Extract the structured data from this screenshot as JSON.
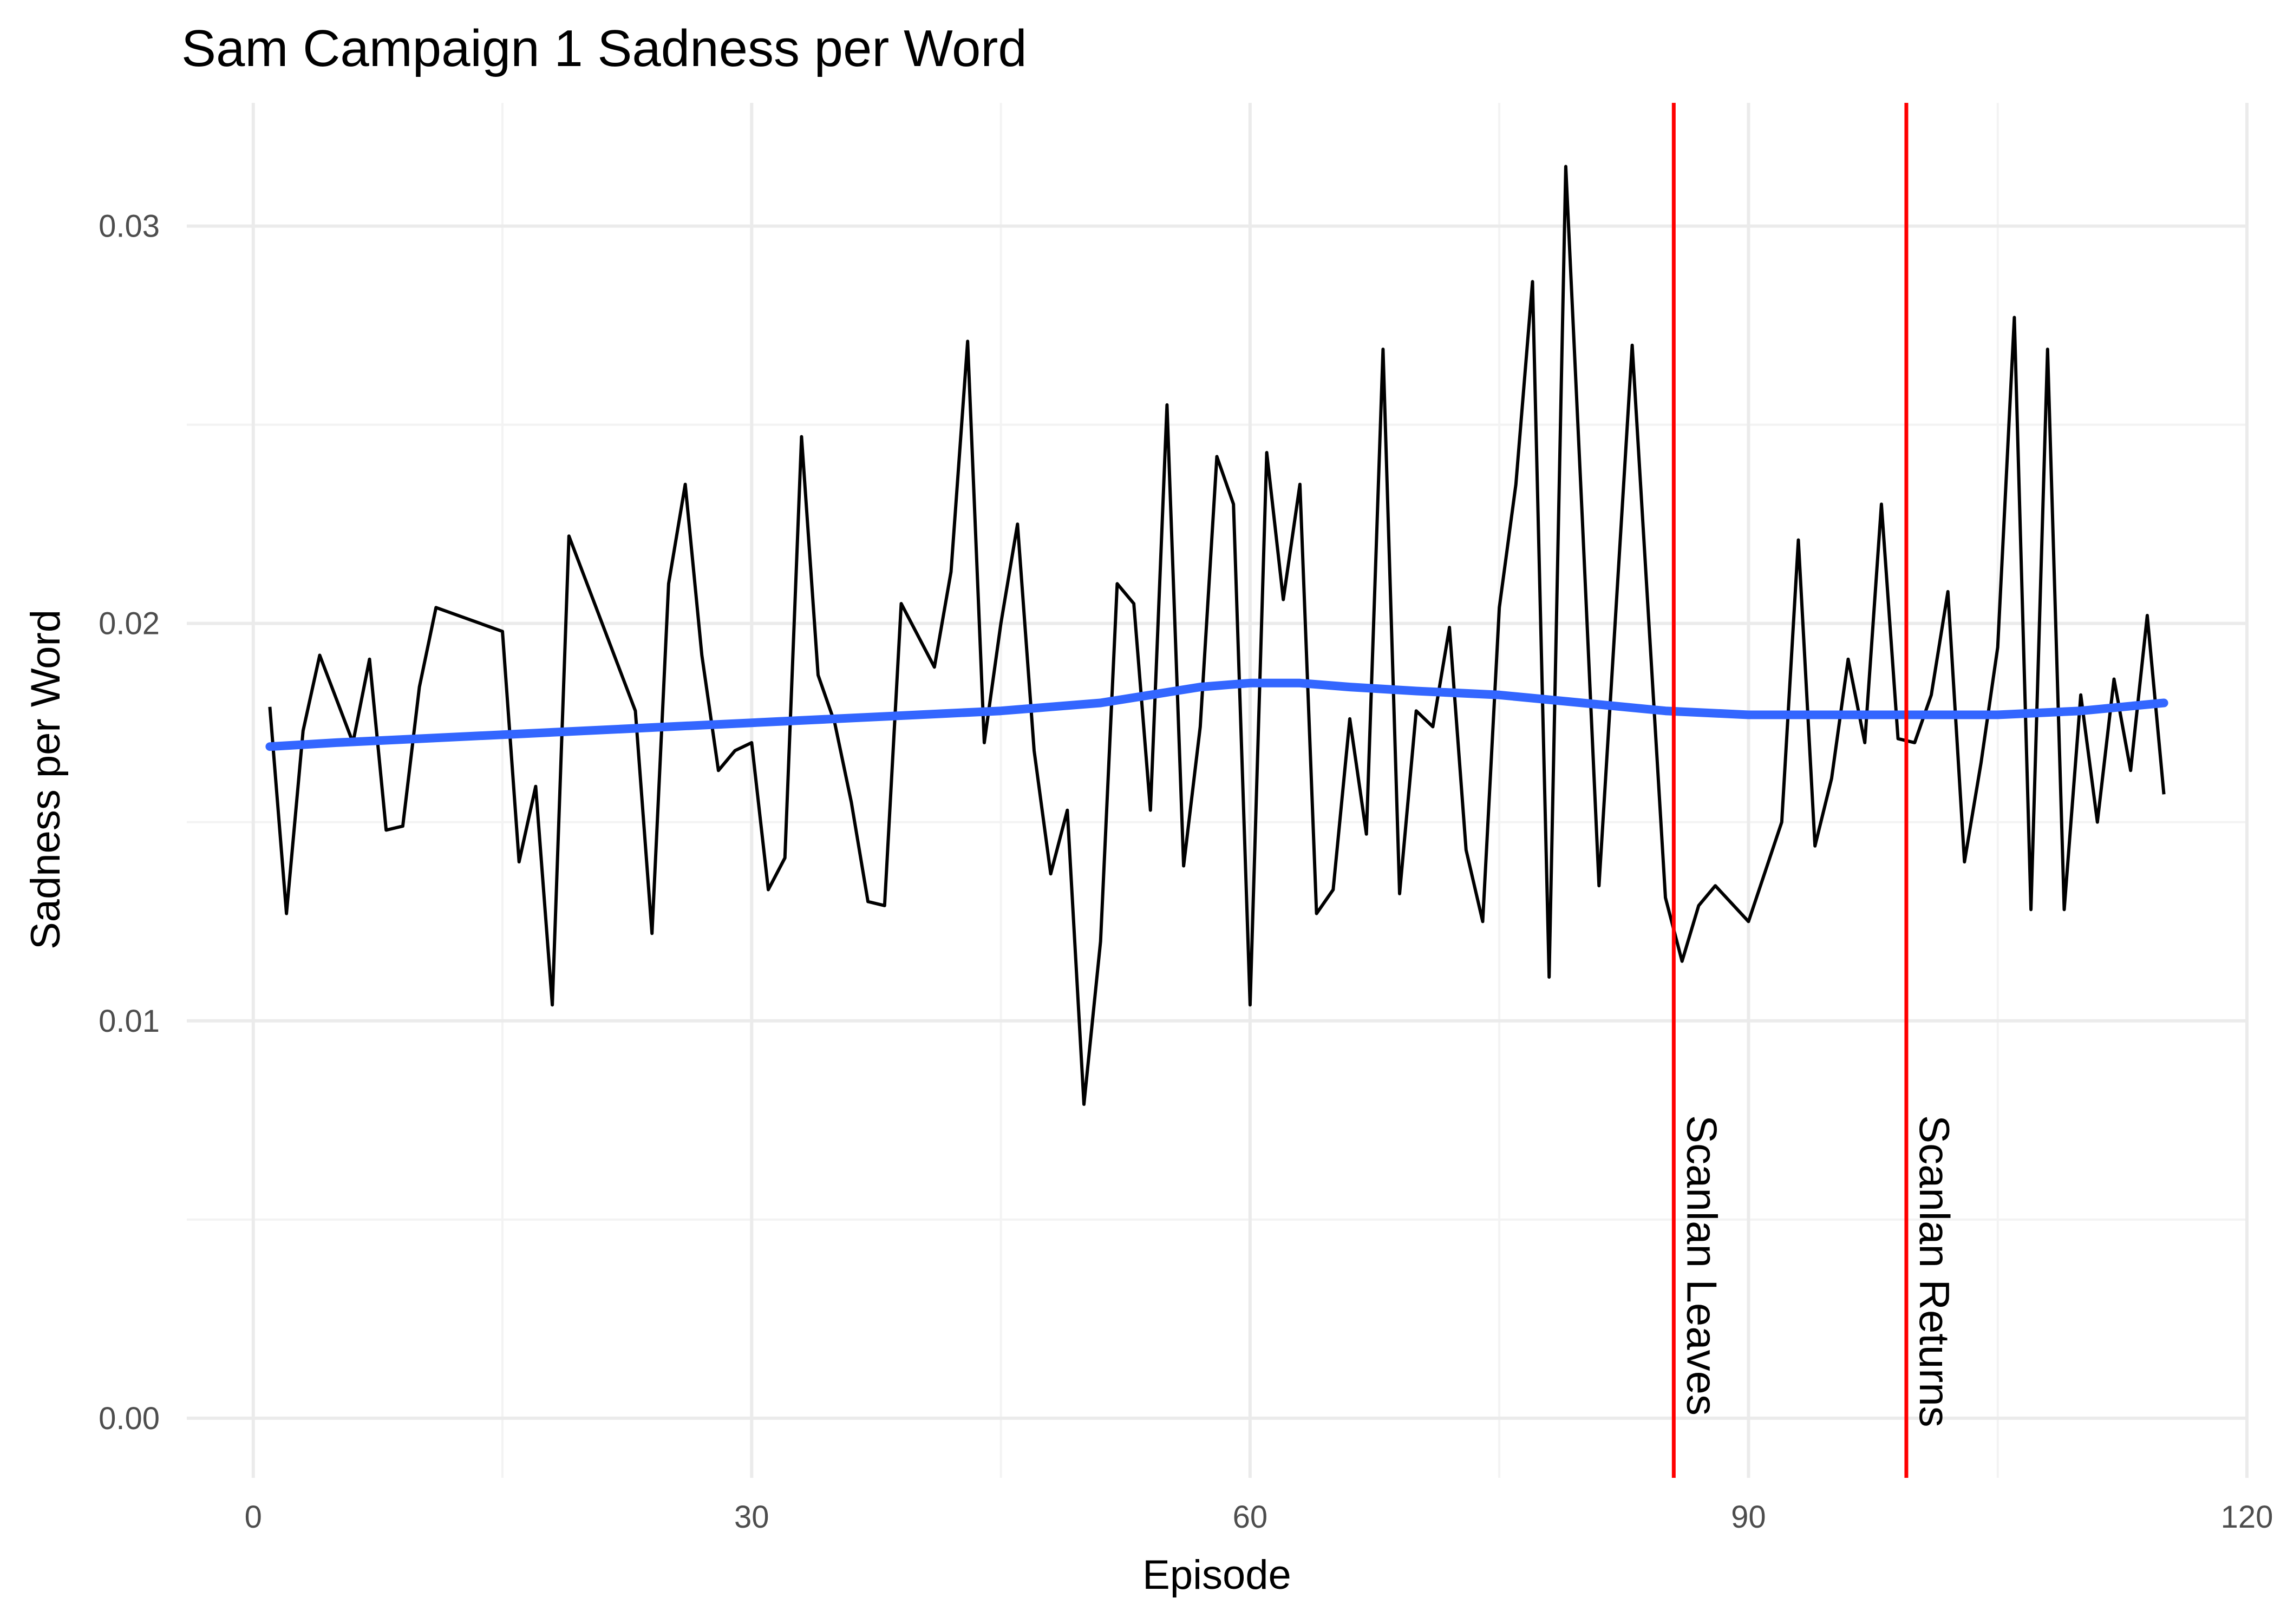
{
  "chart_data": {
    "type": "line",
    "title": "Sam Campaign 1 Sadness per Word",
    "xlabel": "Episode",
    "ylabel": "Sadness per Word",
    "xlim": [
      -4,
      120
    ],
    "ylim": [
      -0.0015,
      0.0331
    ],
    "x_ticks": [
      0,
      30,
      60,
      90,
      120
    ],
    "x_tick_labels": [
      "0",
      "30",
      "60",
      "90",
      "120"
    ],
    "y_ticks": [
      0,
      0.01,
      0.02,
      0.03
    ],
    "y_tick_labels": [
      "0.00",
      "0.01",
      "0.02",
      "0.03"
    ],
    "grid": true,
    "legend": "none",
    "colors": {
      "series": "#000000",
      "smooth": "#3366ff",
      "vline": "#ff0000"
    },
    "series": [
      {
        "x": [
          1,
          2,
          3,
          4,
          6,
          7,
          8,
          9,
          10,
          11,
          15,
          16,
          17,
          18,
          19,
          23,
          24,
          25,
          26,
          27,
          28,
          29,
          30,
          31,
          32,
          33,
          34,
          35,
          36,
          37,
          38,
          39,
          41,
          42,
          43,
          44,
          45,
          46,
          47,
          48,
          49,
          50,
          51,
          52,
          53,
          54,
          55,
          56,
          57,
          58,
          59,
          60,
          61,
          62,
          63,
          64,
          65,
          66,
          67,
          68,
          69,
          70,
          71,
          72,
          73,
          74,
          75,
          76,
          77,
          78,
          79,
          80,
          81,
          83,
          85,
          86,
          87,
          88,
          90,
          92,
          93,
          94,
          95,
          96,
          97,
          98,
          99,
          100,
          101,
          102,
          103,
          104,
          105,
          106,
          107,
          108,
          109,
          110,
          111,
          112,
          113,
          114,
          115
        ],
        "values": [
          0.0179,
          0.0127,
          0.0173,
          0.0192,
          0.017,
          0.0191,
          0.0148,
          0.0149,
          0.0184,
          0.0204,
          0.0198,
          0.014,
          0.0159,
          0.0104,
          0.0222,
          0.0178,
          0.0122,
          0.021,
          0.0235,
          0.0192,
          0.0163,
          0.0168,
          0.017,
          0.0133,
          0.0141,
          0.0247,
          0.0187,
          0.0175,
          0.0155,
          0.013,
          0.0129,
          0.0205,
          0.0189,
          0.0213,
          0.0271,
          0.017,
          0.02,
          0.0225,
          0.0168,
          0.0137,
          0.0153,
          0.0079,
          0.012,
          0.021,
          0.0205,
          0.0153,
          0.0255,
          0.0139,
          0.0174,
          0.0242,
          0.023,
          0.0104,
          0.0243,
          0.0206,
          0.0235,
          0.0127,
          0.0133,
          0.0176,
          0.0147,
          0.0269,
          0.0132,
          0.0178,
          0.0174,
          0.0199,
          0.0143,
          0.0125,
          0.0204,
          0.0235,
          0.0286,
          0.0111,
          0.0315,
          0.0226,
          0.0134,
          0.027,
          0.0131,
          0.0115,
          0.0129,
          0.0134,
          0.0125,
          0.015,
          0.0221,
          0.0144,
          0.0161,
          0.0191,
          0.017,
          0.023,
          0.0171,
          0.017,
          0.0182,
          0.0208,
          0.014,
          0.0165,
          0.0194,
          0.0277,
          0.0128,
          0.0269,
          0.0128,
          0.0182,
          0.015,
          0.0186,
          0.0163,
          0.0202,
          0.0157
        ]
      },
      {
        "x": [
          1,
          5,
          10,
          15,
          20,
          25,
          30,
          35,
          40,
          45,
          48,
          51,
          54,
          57,
          60,
          63,
          66,
          70,
          75,
          80,
          85,
          90,
          95,
          100,
          105,
          110,
          115
        ],
        "values": [
          0.0169,
          0.017,
          0.0171,
          0.0172,
          0.0173,
          0.0174,
          0.0175,
          0.0176,
          0.0177,
          0.0178,
          0.0179,
          0.018,
          0.0182,
          0.0184,
          0.0185,
          0.0185,
          0.0184,
          0.0183,
          0.0182,
          0.018,
          0.0178,
          0.0177,
          0.0177,
          0.0177,
          0.0177,
          0.0178,
          0.018
        ]
      }
    ],
    "annotations": [
      {
        "x": 85.5,
        "label": "Scanlan Leaves"
      },
      {
        "x": 99.5,
        "label": "Scanlan Returns"
      }
    ]
  }
}
